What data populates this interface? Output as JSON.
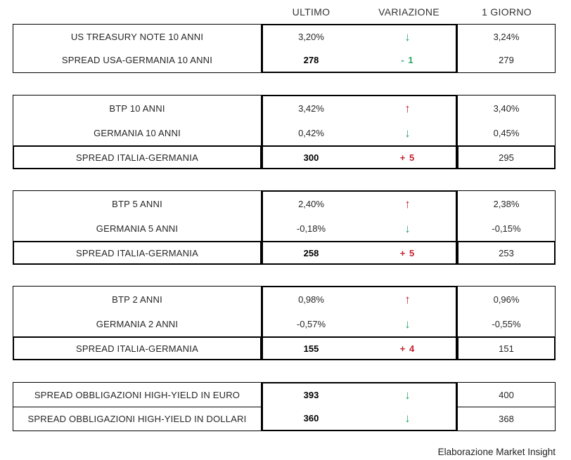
{
  "colors": {
    "up": "#c32030",
    "down": "#2aa366"
  },
  "chart_data": {
    "type": "table",
    "column_headers": [
      "ULTIMO",
      "VARIAZIONE",
      "1 GIORNO"
    ],
    "groups": [
      {
        "rows": [
          {
            "label": "US TREASURY NOTE 10 ANNI",
            "ultimo": "3,20%",
            "emphasis": false,
            "variation": {
              "kind": "arrow",
              "direction": "down"
            },
            "giorno": "3,24%"
          },
          {
            "label": "SPREAD USA-GERMANIA 10 ANNI",
            "ultimo": "278",
            "emphasis": true,
            "variation": {
              "kind": "value",
              "text": "- 1",
              "direction": "down"
            },
            "giorno": "279"
          }
        ],
        "spread_row": null,
        "row_dividers": false
      },
      {
        "rows": [
          {
            "label": "BTP 10 ANNI",
            "ultimo": "3,42%",
            "emphasis": false,
            "variation": {
              "kind": "arrow",
              "direction": "up"
            },
            "giorno": "3,40%"
          },
          {
            "label": "GERMANIA 10 ANNI",
            "ultimo": "0,42%",
            "emphasis": false,
            "variation": {
              "kind": "arrow",
              "direction": "down"
            },
            "giorno": "0,45%"
          }
        ],
        "spread_row": {
          "label": "SPREAD ITALIA-GERMANIA",
          "ultimo": "300",
          "emphasis": true,
          "variation": {
            "kind": "value",
            "text": "+ 5",
            "direction": "up"
          },
          "giorno": "295"
        },
        "row_dividers": false
      },
      {
        "rows": [
          {
            "label": "BTP 5 ANNI",
            "ultimo": "2,40%",
            "emphasis": false,
            "variation": {
              "kind": "arrow",
              "direction": "up"
            },
            "giorno": "2,38%"
          },
          {
            "label": "GERMANIA 5 ANNI",
            "ultimo": "-0,18%",
            "emphasis": false,
            "variation": {
              "kind": "arrow",
              "direction": "down"
            },
            "giorno": "-0,15%"
          }
        ],
        "spread_row": {
          "label": "SPREAD ITALIA-GERMANIA",
          "ultimo": "258",
          "emphasis": true,
          "variation": {
            "kind": "value",
            "text": "+ 5",
            "direction": "up"
          },
          "giorno": "253"
        },
        "row_dividers": false
      },
      {
        "rows": [
          {
            "label": "BTP 2 ANNI",
            "ultimo": "0,98%",
            "emphasis": false,
            "variation": {
              "kind": "arrow",
              "direction": "up"
            },
            "giorno": "0,96%"
          },
          {
            "label": "GERMANIA 2 ANNI",
            "ultimo": "-0,57%",
            "emphasis": false,
            "variation": {
              "kind": "arrow",
              "direction": "down"
            },
            "giorno": "-0,55%"
          }
        ],
        "spread_row": {
          "label": "SPREAD ITALIA-GERMANIA",
          "ultimo": "155",
          "emphasis": true,
          "variation": {
            "kind": "value",
            "text": "+ 4",
            "direction": "up"
          },
          "giorno": "151"
        },
        "row_dividers": false
      },
      {
        "rows": [
          {
            "label": "SPREAD OBBLIGAZIONI HIGH-YIELD IN EURO",
            "ultimo": "393",
            "emphasis": true,
            "variation": {
              "kind": "arrow",
              "direction": "down"
            },
            "giorno": "400"
          },
          {
            "label": "SPREAD OBBLIGAZIONI HIGH-YIELD IN DOLLARI",
            "ultimo": "360",
            "emphasis": true,
            "variation": {
              "kind": "arrow",
              "direction": "down"
            },
            "giorno": "368"
          }
        ],
        "spread_row": null,
        "row_dividers": true
      }
    ]
  },
  "footer": {
    "source": "Elaborazione Market Insight"
  }
}
